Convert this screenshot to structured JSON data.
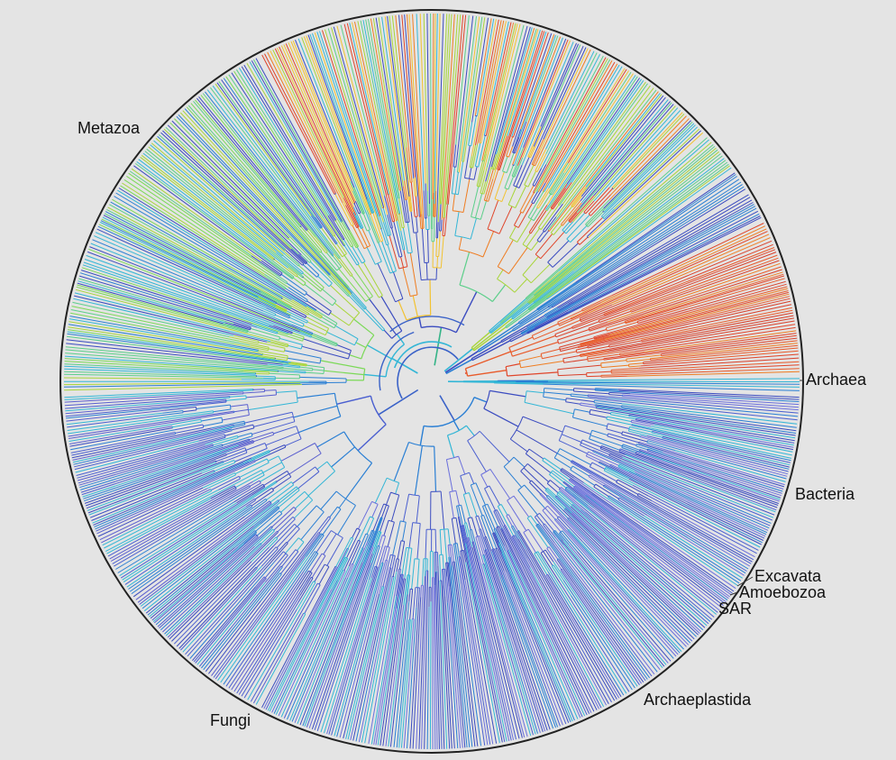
{
  "figure": {
    "type": "circular-phylogenetic-tree",
    "background": "#e4e4e4",
    "rim_color": "#222222",
    "color_scale": [
      "#3b4cc0",
      "#2a7fd4",
      "#33b6d6",
      "#5ccf8a",
      "#a8d53a",
      "#f2c230",
      "#ef7d22",
      "#e0452a"
    ]
  },
  "clades": [
    {
      "key": "metazoa",
      "label": "Metazoa",
      "from": 118,
      "to": 178,
      "palette": [
        "#3b4cc0",
        "#4a5fd0",
        "#33b6d6",
        "#2a7fd4",
        "#5a5fcf"
      ],
      "deep": "#3a62c8"
    },
    {
      "key": "fungi",
      "label": "Fungi",
      "from": 178,
      "to": 242,
      "palette": [
        "#5ccf8a",
        "#a8d53a",
        "#2a7fd4",
        "#33b6d6",
        "#3b4cc0",
        "#7bd957"
      ],
      "deep": "#33b6d6"
    },
    {
      "key": "archaeplastida",
      "label": "Archaeplastida",
      "from": 242,
      "to": 318,
      "palette": [
        "#33b6d6",
        "#5ccf8a",
        "#f2c230",
        "#ef7d22",
        "#e0452a",
        "#3b4cc0",
        "#a8d53a"
      ],
      "deep": "#34b487"
    },
    {
      "key": "sar",
      "label": "SAR",
      "from": 318,
      "to": 325,
      "palette": [
        "#33b6d6",
        "#5ccf8a",
        "#a8d53a"
      ],
      "deep": "#33b6d6"
    },
    {
      "key": "amoebozoa",
      "label": "Amoebozoa",
      "from": 325,
      "to": 329,
      "palette": [
        "#3b4cc0",
        "#2a7fd4"
      ],
      "deep": "#3b4cc0"
    },
    {
      "key": "excavata",
      "label": "Excavata",
      "from": 329,
      "to": 334,
      "palette": [
        "#2a7fd4",
        "#3b4cc0"
      ],
      "deep": "#2a7fd4"
    },
    {
      "key": "bacteria",
      "label": "Bacteria",
      "from": 334,
      "to": 359,
      "palette": [
        "#e0452a",
        "#ef7d22",
        "#e85a2a",
        "#d8402a"
      ],
      "deep": "#e0452a"
    },
    {
      "key": "archaea",
      "label": "Archaea",
      "from": 359,
      "to": 362,
      "palette": [
        "#33b6d6",
        "#2a7fd4"
      ],
      "deep": "#33b6d6"
    },
    {
      "key": "unlabeled",
      "label": "",
      "from": 2,
      "to": 118,
      "palette": [
        "#3b4cc0",
        "#4a5fd0",
        "#2a7fd4",
        "#33b6d6",
        "#6a6fdc"
      ],
      "deep": "#3a62c8"
    }
  ],
  "labels": {
    "metazoa": "Metazoa",
    "fungi": "Fungi",
    "archaeplastida": "Archaeplastida",
    "sar": "SAR",
    "amoebozoa": "Amoebozoa",
    "excavata": "Excavata",
    "bacteria": "Bacteria",
    "archaea": "Archaea"
  }
}
